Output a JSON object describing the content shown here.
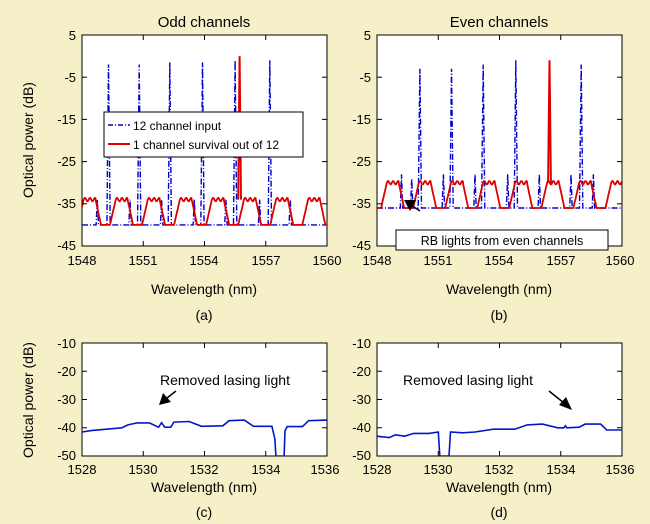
{
  "colors": {
    "background": "#f6f0c8",
    "plot_bg": "#ffffff",
    "input": "#0000cc",
    "survival": "#dd0000",
    "trace": "#0018c8"
  },
  "chart_data": [
    {
      "panel": "(a)",
      "type": "line",
      "title": "Odd channels",
      "xlabel": "Wavelength (nm)",
      "ylabel": "Optical power (dB)",
      "xlim": [
        1548,
        1560
      ],
      "ylim": [
        -45,
        5
      ],
      "xticks": [
        "1548",
        "1551",
        "1554",
        "1557",
        "1560"
      ],
      "yticks": [
        "5",
        "-5",
        "-15",
        "-25",
        "-35",
        "-45"
      ],
      "grid": false,
      "legend": {
        "placement": "center-left",
        "entries": [
          "12 channel input",
          "1 channel survival out of 12"
        ]
      },
      "series": [
        {
          "name": "12 channel input",
          "style": "dash-dot",
          "baseline_dB": -40,
          "peaks": [
            {
              "x": 1549.3,
              "y": -2
            },
            {
              "x": 1550.8,
              "y": -2
            },
            {
              "x": 1552.3,
              "y": -1.5
            },
            {
              "x": 1553.9,
              "y": -1.5
            },
            {
              "x": 1555.5,
              "y": -1
            },
            {
              "x": 1557.2,
              "y": -1
            }
          ],
          "side_peaks": [
            {
              "x": 1548.75,
              "y": -34
            },
            {
              "x": 1550.35,
              "y": -34
            },
            {
              "x": 1551.9,
              "y": -34
            },
            {
              "x": 1553.5,
              "y": -34
            },
            {
              "x": 1555.05,
              "y": -34
            },
            {
              "x": 1556.7,
              "y": -34
            },
            {
              "x": 1558.2,
              "y": -34
            }
          ]
        },
        {
          "name": "1 channel survival out of 12",
          "style": "solid",
          "base_dB": -40,
          "ripple_peak_dB": -34,
          "ripple_period_nm": 1.57,
          "ripple_start_nm": 1547.8,
          "peak": {
            "x": 1555.72,
            "y": 0
          }
        }
      ]
    },
    {
      "panel": "(b)",
      "type": "line",
      "title": "Even channels",
      "xlabel": "Wavelength (nm)",
      "ylabel": "",
      "xlim": [
        1548,
        1560
      ],
      "ylim": [
        -45,
        5
      ],
      "xticks": [
        "1548",
        "1551",
        "1554",
        "1557",
        "1560"
      ],
      "yticks": [
        "5",
        "-5",
        "-15",
        "-25",
        "-35",
        "-45"
      ],
      "grid": false,
      "annotation": "RB lights from even channels",
      "series": [
        {
          "name": "12 channel input",
          "style": "dash-dot",
          "baseline_dB": -36,
          "peaks": [
            {
              "x": 1550.1,
              "y": -3
            },
            {
              "x": 1551.65,
              "y": -3
            },
            {
              "x": 1553.2,
              "y": -2
            },
            {
              "x": 1554.8,
              "y": -1
            },
            {
              "x": 1558.0,
              "y": -2
            }
          ],
          "side_peaks": [
            {
              "x": 1549.2,
              "y": -28
            },
            {
              "x": 1549.7,
              "y": -29
            },
            {
              "x": 1551.25,
              "y": -28
            },
            {
              "x": 1552.8,
              "y": -28
            },
            {
              "x": 1554.4,
              "y": -28
            },
            {
              "x": 1555.95,
              "y": -28
            },
            {
              "x": 1557.5,
              "y": -28
            },
            {
              "x": 1558.6,
              "y": -28
            }
          ]
        },
        {
          "name": "1 channel survival out of 12",
          "style": "solid",
          "base_dB": -36,
          "ripple_peak_dB": -30,
          "ripple_period_nm": 1.57,
          "ripple_start_nm": 1548.2,
          "peak": {
            "x": 1556.45,
            "y": -1
          }
        }
      ]
    },
    {
      "panel": "(c)",
      "type": "line",
      "title": "",
      "xlabel": "Wavelength (nm)",
      "ylabel": "Optical power (dB)",
      "xlim": [
        1528,
        1536
      ],
      "ylim": [
        -50,
        -10
      ],
      "xticks": [
        "1528",
        "1530",
        "1532",
        "1534",
        "1536"
      ],
      "yticks": [
        "-10",
        "-20",
        "-30",
        "-40",
        "-50"
      ],
      "grid": false,
      "annotation": "Removed lasing light",
      "series": [
        {
          "name": "",
          "points": [
            [
              1528.0,
              -41.5
            ],
            [
              1528.3,
              -41.0
            ],
            [
              1528.8,
              -40.5
            ],
            [
              1529.3,
              -40.0
            ],
            [
              1529.5,
              -39.0
            ],
            [
              1529.8,
              -38.3
            ],
            [
              1530.2,
              -38.3
            ],
            [
              1530.5,
              -39.8
            ],
            [
              1530.6,
              -38.2
            ],
            [
              1530.7,
              -39.8
            ],
            [
              1530.9,
              -39.8
            ],
            [
              1531.0,
              -38.0
            ],
            [
              1531.5,
              -37.8
            ],
            [
              1531.9,
              -39.5
            ],
            [
              1532.6,
              -39.3
            ],
            [
              1532.8,
              -37.5
            ],
            [
              1533.3,
              -37.3
            ],
            [
              1533.6,
              -39.5
            ],
            [
              1534.2,
              -39.5
            ],
            [
              1534.3,
              -44.0
            ],
            [
              1534.33,
              -50.0
            ],
            [
              1534.6,
              -50.0
            ],
            [
              1534.63,
              -41.0
            ],
            [
              1534.7,
              -39.6
            ],
            [
              1535.2,
              -39.6
            ],
            [
              1535.4,
              -37.5
            ],
            [
              1536.0,
              -37.3
            ]
          ]
        }
      ]
    },
    {
      "panel": "(d)",
      "type": "line",
      "title": "",
      "xlabel": "Wavelength (nm)",
      "ylabel": "",
      "xlim": [
        1528,
        1536
      ],
      "ylim": [
        -50,
        -10
      ],
      "xticks": [
        "1528",
        "1530",
        "1532",
        "1534",
        "1536"
      ],
      "yticks": [
        "-10",
        "-20",
        "-30",
        "-40",
        "-50"
      ],
      "grid": false,
      "annotation": "Removed lasing light",
      "series": [
        {
          "name": "",
          "points": [
            [
              1528.0,
              -43.0
            ],
            [
              1528.4,
              -43.5
            ],
            [
              1528.6,
              -42.5
            ],
            [
              1528.9,
              -43.0
            ],
            [
              1529.2,
              -42.0
            ],
            [
              1529.7,
              -42.0
            ],
            [
              1530.0,
              -41.5
            ],
            [
              1530.05,
              -50.0
            ],
            [
              1530.35,
              -50.0
            ],
            [
              1530.4,
              -41.5
            ],
            [
              1530.8,
              -41.8
            ],
            [
              1531.2,
              -41.5
            ],
            [
              1531.8,
              -40.5
            ],
            [
              1532.5,
              -40.5
            ],
            [
              1532.9,
              -39.0
            ],
            [
              1533.4,
              -38.7
            ],
            [
              1533.9,
              -40.0
            ],
            [
              1534.1,
              -40.0
            ],
            [
              1534.15,
              -39.3
            ],
            [
              1534.2,
              -40.0
            ],
            [
              1534.6,
              -39.8
            ],
            [
              1534.8,
              -38.7
            ],
            [
              1535.3,
              -38.7
            ],
            [
              1535.5,
              -40.8
            ],
            [
              1536.0,
              -40.8
            ]
          ]
        }
      ]
    }
  ]
}
